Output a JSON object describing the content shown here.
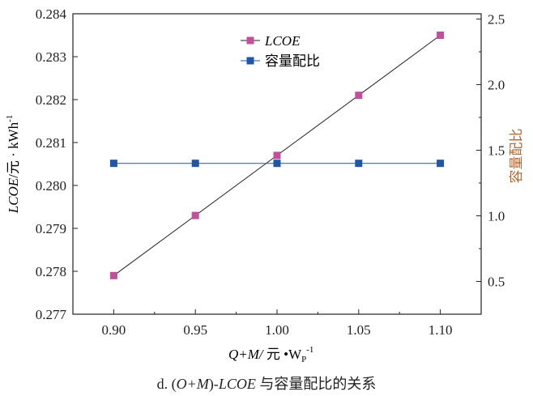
{
  "chart_data": {
    "type": "line",
    "x": [
      0.9,
      0.95,
      1.0,
      1.05,
      1.1
    ],
    "xlim": [
      0.875,
      1.125
    ],
    "x_ticks": [
      "0.90",
      "0.95",
      "1.00",
      "1.05",
      "1.10"
    ],
    "xlabel": {
      "main": "Q+M/ 元 •W",
      "sub": "P",
      "sup": "-1"
    },
    "ylabel_left": {
      "main": "LCOE/元 · kWh",
      "sup": "-1"
    },
    "ylabel_right": "容量配比",
    "ylim_left": [
      0.277,
      0.284
    ],
    "y_ticks_left": [
      "0.277",
      "0.278",
      "0.279",
      "0.280",
      "0.281",
      "0.282",
      "0.283",
      "0.284"
    ],
    "ylim_right": [
      0.25,
      2.54
    ],
    "y_ticks_right": [
      "0.5",
      "1.0",
      "1.5",
      "2.0",
      "2.5"
    ],
    "grid": false,
    "legend_placement": "top-center",
    "series": [
      {
        "name": "LCOE",
        "axis": "left",
        "values": [
          0.2779,
          0.2793,
          0.2807,
          0.2821,
          0.2835
        ],
        "marker_color": "#c0509a",
        "line_color": "#222222"
      },
      {
        "name": "容量配比",
        "axis": "right",
        "values": [
          1.4,
          1.4,
          1.4,
          1.4,
          1.4
        ],
        "marker_color": "#1f56a8",
        "line_color": "#1f56a8"
      }
    ],
    "right_label_color": "#b5652e"
  },
  "caption": {
    "prefix": "d. (",
    "om": "O+M",
    "mid": ")-",
    "lcoe": "LCOE",
    "rest": " 与容量配比的关系"
  }
}
